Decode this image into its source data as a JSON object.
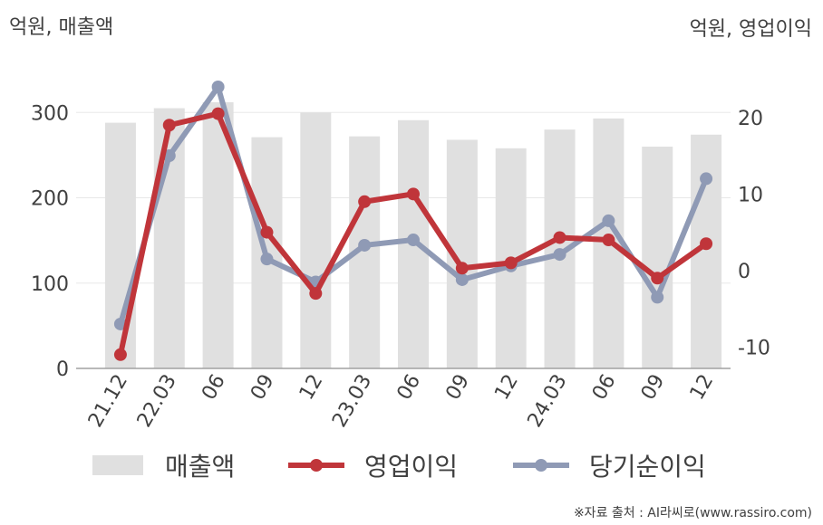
{
  "header": {
    "left_unit": "억원, 매출액",
    "right_unit": "억원, 영업이익"
  },
  "source": "※자료 출처 : AI라씨로(www.rassiro.com)",
  "colors": {
    "revenue": "#e0e0e0",
    "operating_profit": "#c0353a",
    "net_income": "#8f9ab5",
    "grid": "#e8e8e8",
    "axis": "#a0a0a0"
  },
  "chart_data": {
    "type": "bar",
    "categories": [
      "21.12",
      "22.03",
      "06",
      "09",
      "12",
      "23.03",
      "06",
      "09",
      "12",
      "24.03",
      "06",
      "09",
      "12"
    ],
    "y_left": {
      "ticks": [
        "0",
        "100",
        "200",
        "300"
      ],
      "ylim": [
        0,
        330
      ]
    },
    "y_right": {
      "ticks": [
        "-10",
        "0",
        "10",
        "20"
      ],
      "ylim": [
        -12.8,
        24
      ]
    },
    "series": [
      {
        "name": "매출액",
        "type": "bar",
        "axis": "left",
        "values": [
          288,
          305,
          312,
          271,
          300,
          272,
          291,
          268,
          258,
          280,
          293,
          260,
          274
        ]
      },
      {
        "name": "영업이익",
        "type": "line",
        "axis": "right",
        "values": [
          -11,
          19,
          20.5,
          5,
          -3,
          9,
          10,
          0.3,
          1,
          4.3,
          4,
          -1,
          3.5
        ]
      },
      {
        "name": "당기순이익",
        "type": "line",
        "axis": "right",
        "values": [
          -7,
          15,
          24,
          1.5,
          -1.5,
          3.3,
          4,
          -1.2,
          0.6,
          2.1,
          6.5,
          -3.5,
          12
        ]
      }
    ],
    "grid": true,
    "legend_position": "bottom"
  }
}
